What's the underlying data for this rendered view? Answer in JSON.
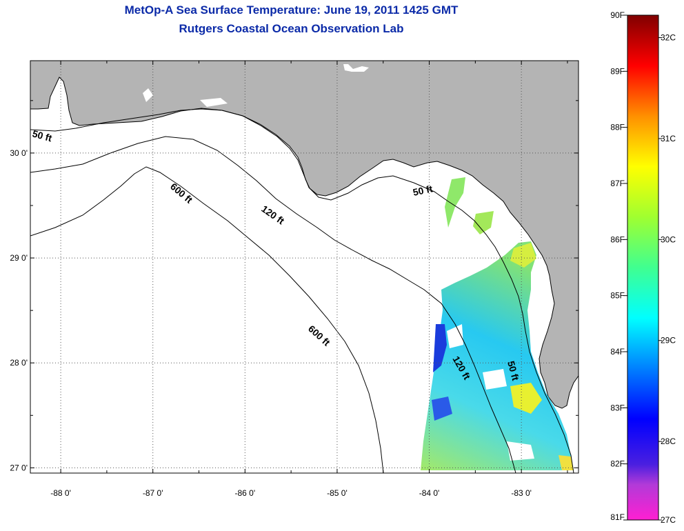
{
  "header": {
    "title_line1": "MetOp-A Sea Surface Temperature:  June 19, 2011 1425 GMT",
    "title_line2": "Rutgers Coastal Ocean Observation Lab"
  },
  "map": {
    "lon_range": [
      -88.33,
      -82.38
    ],
    "lat_range": [
      26.95,
      30.88
    ],
    "lon_ticks": [
      {
        "value": -88,
        "label": "-88 0'"
      },
      {
        "value": -87,
        "label": "-87 0'"
      },
      {
        "value": -86,
        "label": "-86 0'"
      },
      {
        "value": -85,
        "label": "-85 0'"
      },
      {
        "value": -84,
        "label": "-84 0'"
      },
      {
        "value": -83,
        "label": "-83 0'"
      }
    ],
    "lat_ticks": [
      {
        "value": 27,
        "label": "27 0'"
      },
      {
        "value": 28,
        "label": "28 0'"
      },
      {
        "value": 29,
        "label": "29 0'"
      },
      {
        "value": 30,
        "label": "30 0'"
      }
    ],
    "contour_labels": [
      "50 ft",
      "600 ft",
      "120 ft",
      "50 ft",
      "600 ft",
      "120 ft",
      "50 ft"
    ],
    "colors": {
      "land": "#b4b4b4",
      "water": "#ffffff",
      "coastline": "#000000"
    }
  },
  "colorbar": {
    "fahrenheit_labels": [
      "90F",
      "89F",
      "88F",
      "87F",
      "86F",
      "85F",
      "84F",
      "83F",
      "82F",
      "81F"
    ],
    "celsius_labels": [
      "32C",
      "31C",
      "30C",
      "29C",
      "28C",
      "27C"
    ],
    "range_f": [
      81,
      90
    ]
  }
}
